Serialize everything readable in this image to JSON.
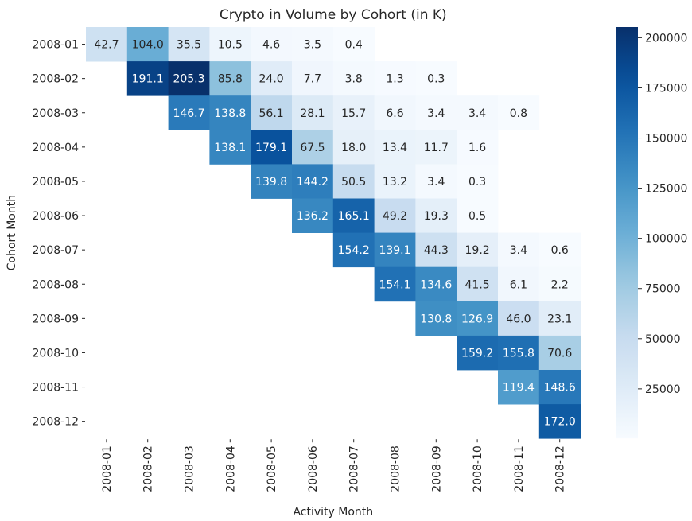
{
  "chart_data": {
    "type": "heatmap",
    "title": "Crypto in Volume by Cohort (in K)",
    "xlabel": "Activity Month",
    "ylabel": "Cohort Month",
    "x_categories": [
      "2008-01",
      "2008-02",
      "2008-03",
      "2008-04",
      "2008-05",
      "2008-06",
      "2008-07",
      "2008-08",
      "2008-09",
      "2008-10",
      "2008-11",
      "2008-12"
    ],
    "y_categories": [
      "2008-01",
      "2008-02",
      "2008-03",
      "2008-04",
      "2008-05",
      "2008-06",
      "2008-07",
      "2008-08",
      "2008-09",
      "2008-10",
      "2008-11",
      "2008-12"
    ],
    "values": [
      [
        42.7,
        104.0,
        35.5,
        10.5,
        4.6,
        3.5,
        0.4,
        null,
        null,
        null,
        null,
        null
      ],
      [
        null,
        191.1,
        205.3,
        85.8,
        24.0,
        7.7,
        3.8,
        1.3,
        0.3,
        null,
        null,
        null
      ],
      [
        null,
        null,
        146.7,
        138.8,
        56.1,
        28.1,
        15.7,
        6.6,
        3.4,
        3.4,
        0.8,
        null
      ],
      [
        null,
        null,
        null,
        138.1,
        179.1,
        67.5,
        18.0,
        13.4,
        11.7,
        1.6,
        null,
        null
      ],
      [
        null,
        null,
        null,
        null,
        139.8,
        144.2,
        50.5,
        13.2,
        3.4,
        0.3,
        null,
        null
      ],
      [
        null,
        null,
        null,
        null,
        null,
        136.2,
        165.1,
        49.2,
        19.3,
        0.5,
        null,
        null
      ],
      [
        null,
        null,
        null,
        null,
        null,
        null,
        154.2,
        139.1,
        44.3,
        19.2,
        3.4,
        0.6
      ],
      [
        null,
        null,
        null,
        null,
        null,
        null,
        null,
        154.1,
        134.6,
        41.5,
        6.1,
        2.2
      ],
      [
        null,
        null,
        null,
        null,
        null,
        null,
        null,
        null,
        130.8,
        126.9,
        46.0,
        23.1
      ],
      [
        null,
        null,
        null,
        null,
        null,
        null,
        null,
        null,
        null,
        159.2,
        155.8,
        70.6
      ],
      [
        null,
        null,
        null,
        null,
        null,
        null,
        null,
        null,
        null,
        null,
        119.4,
        148.6
      ],
      [
        null,
        null,
        null,
        null,
        null,
        null,
        null,
        null,
        null,
        null,
        null,
        172.0
      ]
    ],
    "value_unit_scale": 1000,
    "colormap": "Blues",
    "colorbar": {
      "ticks": [
        25000,
        50000,
        75000,
        100000,
        125000,
        150000,
        175000,
        200000
      ],
      "range": [
        300,
        205300
      ]
    },
    "grid": false,
    "legend": "colorbar-right"
  }
}
